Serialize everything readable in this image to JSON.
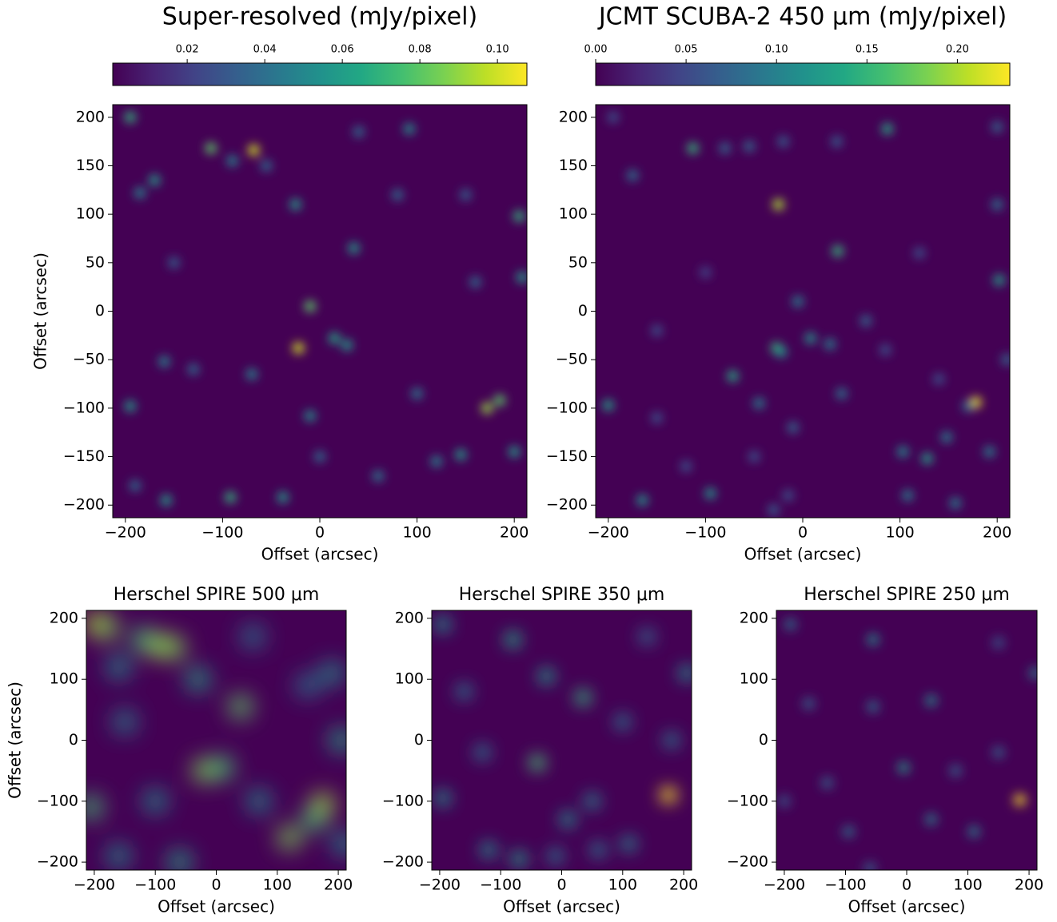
{
  "chart_data": [
    {
      "type": "image",
      "title": "Super-resolved (mJy/pixel)",
      "xlabel": "Offset (arcsec)",
      "ylabel": "Offset (arcsec)",
      "xlim": [
        -213,
        213
      ],
      "ylim": [
        -213,
        213
      ],
      "xticks": [
        {
          "value": -200,
          "label": "−200"
        },
        {
          "value": -100,
          "label": "−100"
        },
        0,
        100,
        200
      ],
      "yticks": [
        {
          "value": -200,
          "label": "−200"
        },
        {
          "value": -150,
          "label": "−150"
        },
        {
          "value": -100,
          "label": "−100"
        },
        {
          "value": -50,
          "label": "−50"
        },
        0,
        50,
        100,
        150,
        200
      ],
      "clim": [
        0.0008,
        0.1076
      ],
      "colorbar": true,
      "cticks": [
        0.02,
        0.04,
        0.06,
        0.08,
        {
          "value": 0.1,
          "label": "0.10"
        }
      ],
      "sources": {
        "x": [
          -195,
          -112,
          -68,
          -170,
          -185,
          -25,
          92,
          35,
          205,
          208,
          -10,
          -22,
          15,
          28,
          172,
          185,
          -195,
          -92,
          -38,
          -158,
          -70,
          -10,
          145,
          200,
          -160,
          -90,
          40,
          -55,
          100,
          -130,
          120,
          -190,
          0,
          60,
          160,
          -150,
          80,
          150
        ],
        "y": [
          200,
          168,
          166,
          135,
          122,
          110,
          188,
          65,
          98,
          35,
          5,
          -38,
          -28,
          -35,
          -100,
          -92,
          -98,
          -192,
          -192,
          -195,
          -65,
          -108,
          -148,
          -145,
          -52,
          155,
          185,
          150,
          -85,
          -60,
          -155,
          -180,
          -150,
          -170,
          30,
          50,
          120,
          120
        ],
        "values": [
          0.07,
          0.08,
          0.1,
          0.06,
          0.05,
          0.06,
          0.055,
          0.06,
          0.07,
          0.06,
          0.08,
          0.1,
          0.065,
          0.06,
          0.09,
          0.08,
          0.06,
          0.07,
          0.06,
          0.06,
          0.05,
          0.055,
          0.06,
          0.06,
          0.05,
          0.05,
          0.04,
          0.04,
          0.045,
          0.04,
          0.05,
          0.04,
          0.04,
          0.045,
          0.04,
          0.035,
          0.04,
          0.035
        ]
      }
    },
    {
      "type": "image",
      "title": "JCMT SCUBA-2 450 μm (mJy/pixel)",
      "xlabel": "Offset (arcsec)",
      "xlim": [
        -213,
        213
      ],
      "ylim": [
        -213,
        213
      ],
      "xticks": [
        {
          "value": -200,
          "label": "−200"
        },
        {
          "value": -100,
          "label": "−100"
        },
        0,
        100,
        200
      ],
      "yticks": [
        {
          "value": -200,
          "label": "−200"
        },
        {
          "value": -150,
          "label": "−150"
        },
        {
          "value": -100,
          "label": "−100"
        },
        {
          "value": -50,
          "label": "−50"
        },
        0,
        50,
        100,
        150,
        200
      ],
      "clim": [
        0,
        0.229
      ],
      "colorbar": true,
      "cticks": [
        {
          "value": 0,
          "label": "0.00"
        },
        0.05,
        {
          "value": 0.1,
          "label": "0.10"
        },
        0.15,
        {
          "value": 0.2,
          "label": "0.20"
        }
      ],
      "sources": {
        "x": [
          -25,
          -113,
          87,
          36,
          -27,
          -22,
          178,
          8,
          28,
          -72,
          -200,
          202,
          -165,
          -95,
          128,
          103,
          148,
          108,
          157,
          200,
          192,
          170,
          -45,
          -10,
          40,
          -5,
          65,
          -55,
          -20,
          -80,
          -175,
          200,
          -195,
          35,
          -30,
          -15,
          -50,
          -120,
          -150,
          210,
          85,
          120,
          -100,
          -150,
          140
        ],
        "y": [
          110,
          168,
          188,
          62,
          -38,
          -42,
          -94,
          -28,
          -34,
          -67,
          -97,
          32,
          -195,
          -188,
          -152,
          -145,
          -130,
          -190,
          -198,
          110,
          -145,
          -98,
          -95,
          -120,
          -85,
          10,
          -10,
          170,
          175,
          168,
          140,
          190,
          200,
          175,
          -205,
          -190,
          -150,
          -160,
          -110,
          -50,
          -40,
          60,
          40,
          -20,
          -70
        ],
        "values": [
          0.2,
          0.15,
          0.14,
          0.15,
          0.15,
          0.12,
          0.22,
          0.12,
          0.1,
          0.14,
          0.13,
          0.13,
          0.12,
          0.12,
          0.13,
          0.11,
          0.1,
          0.1,
          0.1,
          0.09,
          0.1,
          0.09,
          0.1,
          0.08,
          0.09,
          0.1,
          0.08,
          0.08,
          0.07,
          0.08,
          0.09,
          0.08,
          0.06,
          0.07,
          0.07,
          0.06,
          0.06,
          0.06,
          0.06,
          0.08,
          0.06,
          0.06,
          0.05,
          0.06,
          0.06
        ]
      }
    },
    {
      "type": "image",
      "title": "Herschel SPIRE 500 μm",
      "xlabel": "Offset (arcsec)",
      "ylabel": "Offset (arcsec)",
      "xlim": [
        -213,
        213
      ],
      "ylim": [
        -213,
        213
      ],
      "xticks": [
        {
          "value": -200,
          "label": "−200"
        },
        {
          "value": -100,
          "label": "−100"
        },
        0,
        100,
        200
      ],
      "yticks": [
        {
          "value": -200,
          "label": "−200"
        },
        {
          "value": -100,
          "label": "−100"
        },
        0,
        100,
        200
      ],
      "clim": [
        0,
        1
      ],
      "sources": {
        "x": [
          -195,
          -180,
          -95,
          -70,
          -120,
          40,
          -20,
          10,
          120,
          175,
          160,
          -205,
          205,
          -30,
          -160,
          -100,
          70,
          -60,
          -160,
          210,
          150,
          -150,
          60,
          190
        ],
        "y": [
          190,
          185,
          155,
          152,
          165,
          55,
          -50,
          -45,
          -160,
          -105,
          -130,
          -110,
          0,
          100,
          120,
          -100,
          -100,
          -200,
          -190,
          -170,
          90,
          30,
          170,
          110
        ],
        "values": [
          0.9,
          0.8,
          0.85,
          0.8,
          0.7,
          0.75,
          0.8,
          0.7,
          0.8,
          0.85,
          0.7,
          0.7,
          0.6,
          0.6,
          0.5,
          0.5,
          0.5,
          0.6,
          0.5,
          0.5,
          0.4,
          0.45,
          0.4,
          0.5
        ]
      }
    },
    {
      "type": "image",
      "title": "Herschel SPIRE 350 μm",
      "xlabel": "Offset (arcsec)",
      "xlim": [
        -213,
        213
      ],
      "ylim": [
        -213,
        213
      ],
      "xticks": [
        {
          "value": -200,
          "label": "−200"
        },
        {
          "value": -100,
          "label": "−100"
        },
        0,
        100,
        200
      ],
      "yticks": [
        {
          "value": -200,
          "label": "−200"
        },
        {
          "value": -100,
          "label": "−100"
        },
        0,
        100,
        200
      ],
      "clim": [
        0,
        1
      ],
      "sources": {
        "x": [
          175,
          -40,
          35,
          -25,
          -80,
          -195,
          205,
          -195,
          -70,
          -120,
          10,
          50,
          110,
          -130,
          180,
          100,
          -160,
          60,
          -10,
          140
        ],
        "y": [
          -90,
          -37,
          70,
          105,
          165,
          190,
          110,
          -95,
          -195,
          -180,
          -130,
          -100,
          -170,
          -20,
          0,
          30,
          80,
          -180,
          -190,
          170
        ],
        "values": [
          1.0,
          0.7,
          0.65,
          0.55,
          0.6,
          0.5,
          0.5,
          0.5,
          0.55,
          0.5,
          0.5,
          0.45,
          0.45,
          0.4,
          0.4,
          0.4,
          0.4,
          0.4,
          0.4,
          0.35
        ]
      }
    },
    {
      "type": "image",
      "title": "Herschel SPIRE 250 μm",
      "xlabel": "Offset (arcsec)",
      "xlim": [
        -213,
        213
      ],
      "ylim": [
        -213,
        213
      ],
      "xticks": [
        {
          "value": -200,
          "label": "−200"
        },
        {
          "value": -100,
          "label": "−100"
        },
        0,
        100,
        200
      ],
      "yticks": [
        {
          "value": -200,
          "label": "−200"
        },
        {
          "value": -100,
          "label": "−100"
        },
        0,
        100,
        200
      ],
      "clim": [
        0,
        1
      ],
      "sources": {
        "x": [
          185,
          -5,
          40,
          -55,
          -190,
          210,
          40,
          110,
          -95,
          -55,
          -160,
          80,
          -130,
          150,
          -60,
          150,
          -200
        ],
        "y": [
          -98,
          -45,
          65,
          165,
          190,
          110,
          -130,
          -150,
          -150,
          55,
          60,
          -50,
          -70,
          -20,
          -210,
          160,
          -100
        ],
        "values": [
          1.0,
          0.55,
          0.5,
          0.5,
          0.4,
          0.45,
          0.45,
          0.45,
          0.4,
          0.4,
          0.35,
          0.35,
          0.35,
          0.35,
          0.35,
          0.3,
          0.3
        ]
      }
    }
  ]
}
